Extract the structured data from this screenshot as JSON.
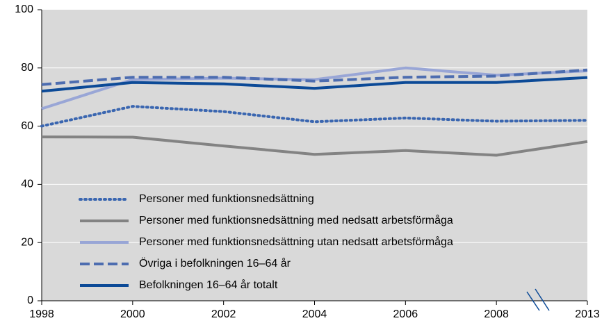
{
  "chart_data": {
    "type": "line",
    "categories": [
      "1998",
      "2000",
      "2002",
      "2004",
      "2006",
      "2008",
      "2013"
    ],
    "ylim": [
      0,
      100
    ],
    "yticks": [
      0,
      20,
      40,
      60,
      80,
      100
    ],
    "grid": true,
    "legend": "lower left",
    "series": [
      {
        "name": "Personer med funktionsnedsättning",
        "color": "#3a66b0",
        "dash": "dotted",
        "values": [
          60,
          66.8,
          65,
          61.5,
          62.8,
          61.7,
          62
        ]
      },
      {
        "name": "Personer med funktionsnedsättning med nedsatt arbetsförmåga",
        "color": "#838383",
        "dash": "solid",
        "values": [
          56.3,
          56.2,
          53.2,
          50.3,
          51.6,
          50,
          54.7
        ]
      },
      {
        "name": "Personer med funktionsnedsättning utan nedsatt arbetsförmåga",
        "color": "#99a6d6",
        "dash": "solid",
        "values": [
          66,
          76,
          76.5,
          76,
          80,
          77.5,
          79
        ]
      },
      {
        "name": "Övriga i befolkningen 16–64 år",
        "color": "#4d6db0",
        "dash": "dashed",
        "values": [
          74.3,
          76.8,
          76.8,
          75.5,
          76.8,
          77.2,
          79.3
        ]
      },
      {
        "name": "Befolkningen 16–64 år totalt",
        "color": "#0c4a97",
        "dash": "solid",
        "values": [
          72,
          75,
          74.5,
          73,
          75,
          75,
          76.7
        ]
      }
    ]
  }
}
